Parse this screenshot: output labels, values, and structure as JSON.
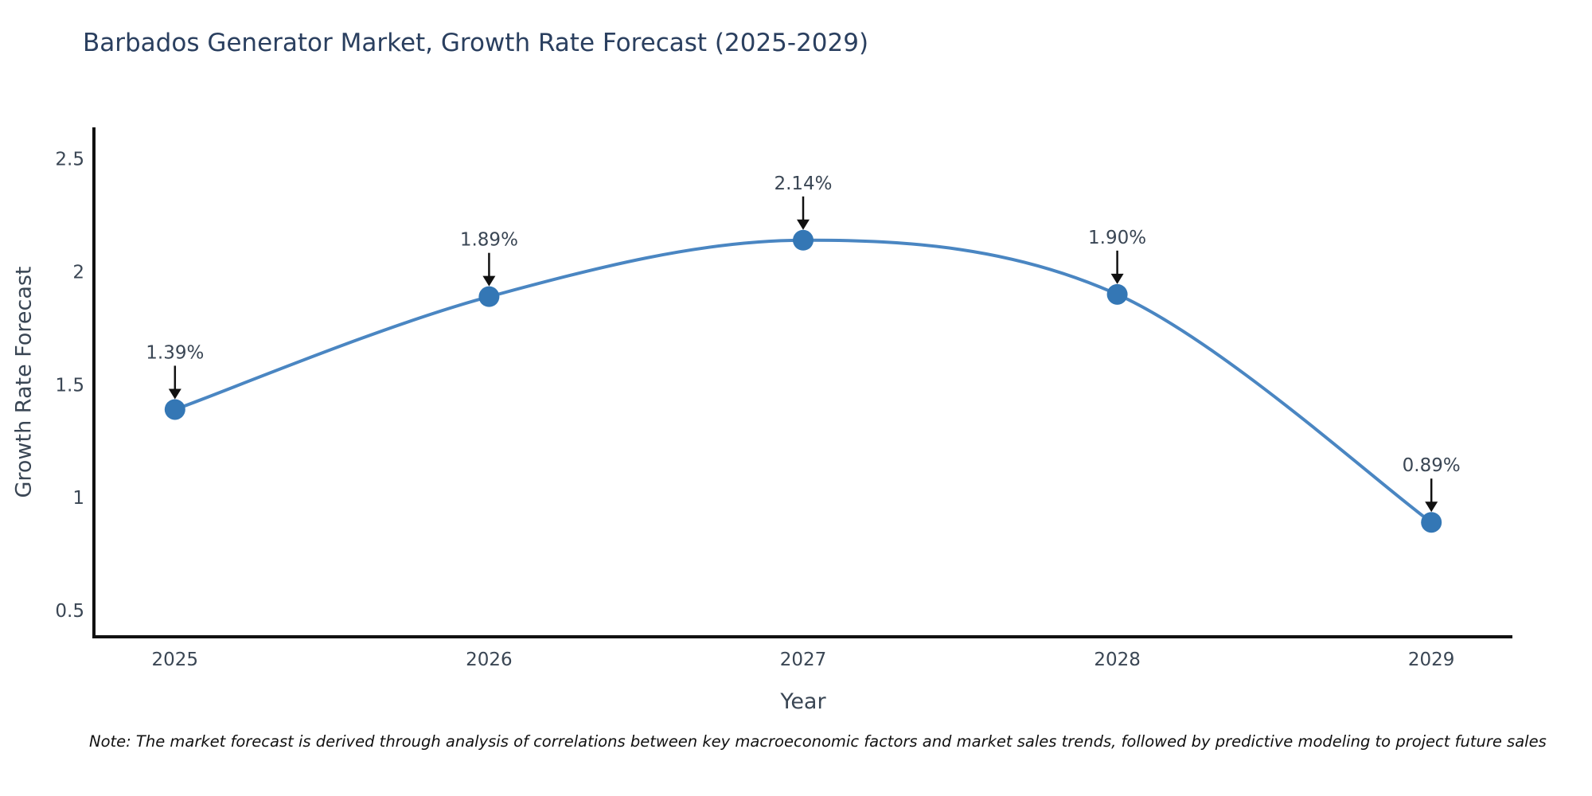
{
  "chart_data": {
    "type": "line",
    "title": "Barbados Generator Market, Growth Rate Forecast (2025-2029)",
    "xlabel": "Year",
    "ylabel": "Growth Rate Forecast",
    "x": [
      2025,
      2026,
      2027,
      2028,
      2029
    ],
    "values": [
      1.39,
      1.89,
      2.14,
      1.9,
      0.89
    ],
    "point_labels": [
      "1.39%",
      "1.89%",
      "2.14%",
      "1.90%",
      "0.89%"
    ],
    "x_tick_labels": [
      "2025",
      "2026",
      "2027",
      "2028",
      "2029"
    ],
    "x_tick_values": [
      2025,
      2026,
      2027,
      2028,
      2029
    ],
    "y_tick_labels": [
      "0.5",
      "1",
      "1.5",
      "2",
      "2.5"
    ],
    "y_tick_values": [
      0.5,
      1.0,
      1.5,
      2.0,
      2.5
    ],
    "xlim": [
      2024.742,
      2029.258
    ],
    "ylim": [
      0.383,
      2.64
    ],
    "grid": false,
    "legend": "none",
    "colors": {
      "line": "#4a86c2",
      "marker": "#3477b5",
      "axis_line": "#111111",
      "tick_text": "#3a4654",
      "title_text": "#2a3f5f",
      "annotation_text": "#3a4654",
      "arrow": "#111111"
    }
  },
  "note": "Note: The market forecast is derived through analysis of correlations between key macroeconomic factors and market sales trends, followed by predictive modeling to project future sales"
}
